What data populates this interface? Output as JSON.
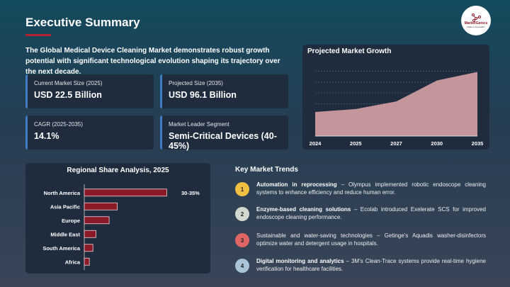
{
  "header": {
    "title": "Executive Summary",
    "logo_text": "MarketGenics",
    "logo_tagline": "Ideas to Innovation"
  },
  "intro": "The Global Medical Device Cleaning Market demonstrates robust growth potential with significant technological evolution shaping its trajectory over the next decade.",
  "cards": [
    {
      "label": "Current Market Size (2025)",
      "value": "USD 22.5 Billion"
    },
    {
      "label": "Projected Size (2035)",
      "value": "USD 96.1 Billion"
    },
    {
      "label": "CAGR (2025-2035)",
      "value": "14.1%"
    },
    {
      "label": "Market Leader Segment",
      "value": "Semi-Critical Devices (40-45%)"
    }
  ],
  "colors": {
    "accent": "#b22233",
    "card_border": "#3f7cc4",
    "area_fill": "#c4959b",
    "bar_fill": "#8b1a28"
  },
  "chart_data": [
    {
      "type": "area",
      "title": "Projected Market Growth",
      "categories": [
        "2024",
        "2025",
        "2027",
        "2030",
        "2035"
      ],
      "values": [
        16.7,
        22.5,
        37.6,
        79,
        96.1
      ],
      "ylim": [
        -31,
        115
      ],
      "grid": true,
      "y_ticks_shown": false
    },
    {
      "type": "bar",
      "orientation": "horizontal",
      "title": "Regional Share Analysis, 2025",
      "categories": [
        "North America",
        "Asia Pacific",
        "Europe",
        "Middle East",
        "South America",
        "Africa"
      ],
      "values": [
        32.5,
        13,
        9.8,
        4.6,
        3.4,
        2
      ],
      "data_labels": [
        "30-35%",
        "",
        "",
        "",
        "",
        ""
      ],
      "xlim": [
        0,
        40
      ]
    }
  ],
  "trends": {
    "title": "Key Market Trends",
    "items": [
      {
        "num": "1",
        "color": "#f0c040",
        "bold": "Automation in reprocessing",
        "text": " – Olympus implemented robotic endoscope cleaning systems to enhance efficiency and reduce human error."
      },
      {
        "num": "2",
        "color": "#d3d9cf",
        "bold": "Enzyme-based cleaning solutions",
        "text": " – Ecolab introduced Exelerate SCS for improved endoscope cleaning performance."
      },
      {
        "num": "3",
        "color": "#e06666",
        "bold": "",
        "text": "Sustainable and water-saving technologies – Getinge’s Aquadis washer-disinfectors optimize water and detergent usage in hospitals."
      },
      {
        "num": "4",
        "color": "#a9c4d6",
        "bold": "Digital monitoring and analytics",
        "text": " – 3M’s Clean-Trace systems provide real-time hygiene verification for healthcare facilities."
      }
    ]
  }
}
